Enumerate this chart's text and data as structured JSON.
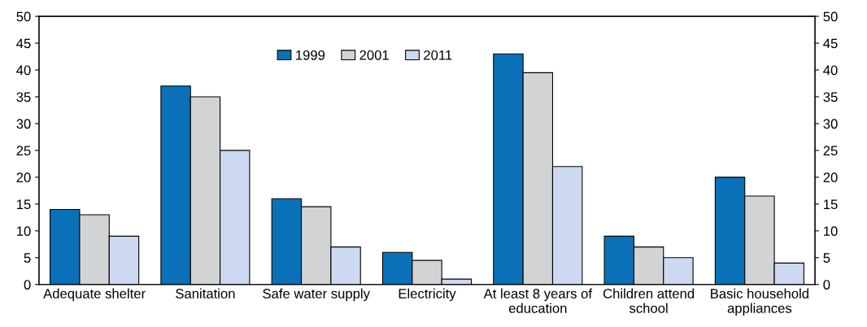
{
  "chart_data": {
    "type": "bar",
    "categories": [
      "Adequate shelter",
      "Sanitation",
      "Safe water supply",
      "Electricity",
      "At least 8 years of\neducation",
      "Children attend\nschool",
      "Basic household\nappliances"
    ],
    "series": [
      {
        "name": "1999",
        "color": "#0a71b9",
        "values": [
          14,
          37,
          16,
          6,
          43,
          9,
          20
        ]
      },
      {
        "name": "2001",
        "color": "#d2d3d5",
        "values": [
          13,
          35,
          14.5,
          4.5,
          39.5,
          7,
          16.5
        ]
      },
      {
        "name": "2011",
        "color": "#cdd9f0",
        "values": [
          9,
          25,
          7,
          1,
          22,
          5,
          4
        ]
      }
    ],
    "ylim": [
      0,
      50
    ],
    "yticks": [
      0,
      5,
      10,
      15,
      20,
      25,
      30,
      35,
      40,
      45,
      50
    ],
    "y2lim": [
      0,
      50
    ],
    "y2ticks": [
      0,
      5,
      10,
      15,
      20,
      25,
      30,
      35,
      40,
      45,
      50
    ],
    "grid": false,
    "legend": "top"
  }
}
